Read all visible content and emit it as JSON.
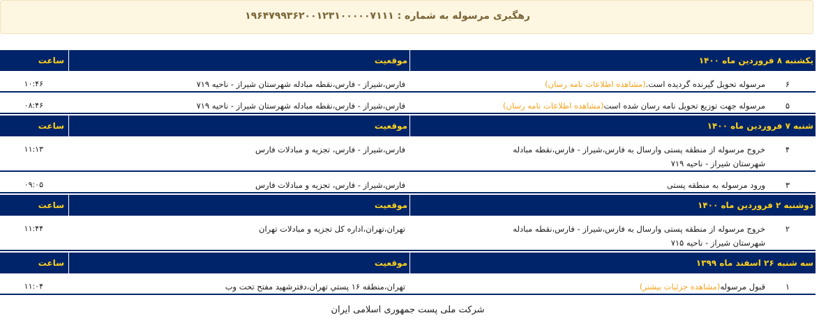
{
  "banner": {
    "title": "رهگیری مرسوله به شماره : ۱۹۶۴۷۹۹۳۶۲۰۰۱۲۳۱۰۰۰۰۰۷۱۱۱"
  },
  "columns": {
    "location": "موقعیت",
    "time": "ساعت"
  },
  "colors": {
    "header_bg": "#002469",
    "header_text": "#ffd21f",
    "link": "#f5a21b",
    "banner_bg": "#fdf6e1"
  },
  "sections": [
    {
      "date": "یکشنبه ۸ فروردین ماه ۱۴۰۰",
      "rows": [
        {
          "num": "۶",
          "desc": "مرسوله تحویل گیرنده گردیده است.",
          "link": "(مشاهده اطلاعات نامه رسان)",
          "location": "فارس،شیراز - فارس،نقطه مبادله شهرستان شیراز - ناحیه ۷۱۹",
          "time": "۱۰:۴۶"
        },
        {
          "num": "۵",
          "desc": "مرسوله جهت توزیع تحویل نامه رسان شده است",
          "link": "(مشاهده اطلاعات نامه رسان)",
          "location": "فارس،شیراز - فارس،نقطه مبادله شهرستان شیراز - ناحیه ۷۱۹",
          "time": "۰۸:۴۶"
        }
      ]
    },
    {
      "date": "شنبه ۷ فروردین ماه ۱۴۰۰",
      "rows": [
        {
          "num": "۴",
          "desc": "خروج مرسوله از منطقه پستی وارسال به فارس،شیراز - فارس،نقطه مبادله شهرستان شیراز - ناحیه ۷۱۹",
          "link": "",
          "location": "فارس،شیراز - فارس، تجزیه و مبادلات فارس",
          "time": "۱۱:۱۳"
        },
        {
          "num": "۳",
          "desc": "ورود مرسوله به منطقه پستی",
          "link": "",
          "location": "فارس،شیراز - فارس، تجزیه و مبادلات فارس",
          "time": "۰۹:۰۵"
        }
      ]
    },
    {
      "date": "دوشنبه ۲ فروردین ماه ۱۴۰۰",
      "rows": [
        {
          "num": "۲",
          "desc": "خروج مرسوله از منطقه پستی وارسال به فارس،شیراز - فارس،نقطه مبادله شهرستان شیراز - ناحیه ۷۱۵",
          "link": "",
          "location": "تهران،تهران،اداره کل تجزیه و مبادلات تهران",
          "time": "۱۱:۴۴"
        }
      ]
    },
    {
      "date": "سه شنبه ۲۶ اسفند ماه ۱۳۹۹",
      "rows": [
        {
          "num": "۱",
          "desc": "قبول مرسوله",
          "link": "(مشاهده جزئیات بیشتر)",
          "location": "تهران،منطقه ۱۶ پستي تهران،دفترشهید مفتح تحت وب",
          "time": "۱۱:۰۴"
        }
      ]
    }
  ],
  "footer": {
    "text": "شرکت ملی پست جمهوری اسلامی ایران"
  }
}
